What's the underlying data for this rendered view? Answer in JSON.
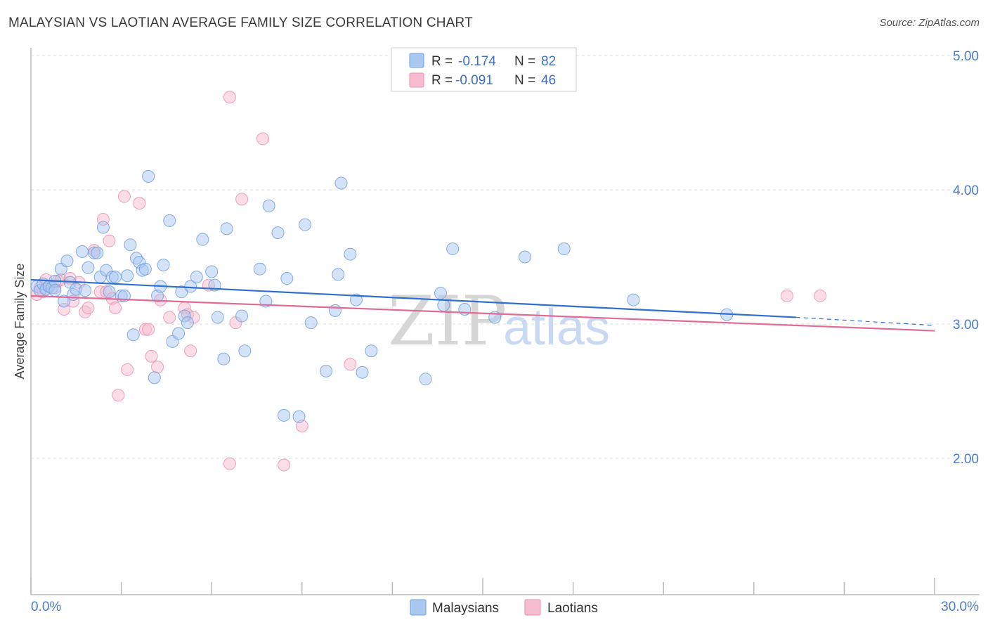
{
  "header": {
    "title": "MALAYSIAN VS LAOTIAN AVERAGE FAMILY SIZE CORRELATION CHART",
    "source": "Source: ZipAtlas.com"
  },
  "watermark": {
    "part1": "ZIP",
    "part2": "atlas"
  },
  "colors": {
    "malaysian_fill": "#aac8f0",
    "malaysian_stroke": "#6f9fe0",
    "malaysian_line": "#2f6fd0",
    "laotian_fill": "#f6bcd0",
    "laotian_stroke": "#ec8fb0",
    "laotian_line": "#e06b95",
    "tick_text": "#4a7cc9",
    "grid": "#dddddd"
  },
  "legend_top": {
    "rows": [
      {
        "r_label": "R =",
        "r_value": "-0.174",
        "n_label": "N =",
        "n_value": "82"
      },
      {
        "r_label": "R =",
        "r_value": "-0.091",
        "n_label": "N =",
        "n_value": "46"
      }
    ]
  },
  "legend_bottom": {
    "items": [
      "Malaysians",
      "Laotians"
    ]
  },
  "chart_data": {
    "type": "scatter",
    "title": "MALAYSIAN VS LAOTIAN AVERAGE FAMILY SIZE CORRELATION CHART",
    "xlabel": "",
    "ylabel": "Average Family Size",
    "xlim": [
      0,
      30
    ],
    "ylim": [
      1.0,
      5.0
    ],
    "x_tick_labels": [
      "0.0%",
      "30.0%"
    ],
    "y_ticks": [
      2.0,
      3.0,
      4.0,
      5.0
    ],
    "y_tick_labels": [
      "2.00",
      "3.00",
      "4.00",
      "5.00"
    ],
    "series": [
      {
        "name": "Malaysians",
        "R": -0.174,
        "N": 82,
        "trend": {
          "x0": 0.0,
          "y0": 3.33,
          "x1": 25.4,
          "y1": 3.05,
          "dash_to_x": 30.0,
          "dash_to_y": 2.99
        },
        "points": [
          [
            0.2,
            3.28
          ],
          [
            0.3,
            3.25
          ],
          [
            0.4,
            3.3
          ],
          [
            0.5,
            3.26
          ],
          [
            0.6,
            3.28
          ],
          [
            0.7,
            3.27
          ],
          [
            0.8,
            3.32
          ],
          [
            0.8,
            3.25
          ],
          [
            1.0,
            3.41
          ],
          [
            1.1,
            3.17
          ],
          [
            1.2,
            3.47
          ],
          [
            1.3,
            3.31
          ],
          [
            1.4,
            3.22
          ],
          [
            1.5,
            3.26
          ],
          [
            1.7,
            3.54
          ],
          [
            1.8,
            3.25
          ],
          [
            1.9,
            3.42
          ],
          [
            2.1,
            3.53
          ],
          [
            2.2,
            3.53
          ],
          [
            2.3,
            3.35
          ],
          [
            2.4,
            3.72
          ],
          [
            2.5,
            3.4
          ],
          [
            2.6,
            3.24
          ],
          [
            2.7,
            3.35
          ],
          [
            2.8,
            3.35
          ],
          [
            3.0,
            3.21
          ],
          [
            3.1,
            3.21
          ],
          [
            3.2,
            3.36
          ],
          [
            3.3,
            3.59
          ],
          [
            3.4,
            2.92
          ],
          [
            3.5,
            3.49
          ],
          [
            3.6,
            3.46
          ],
          [
            3.7,
            3.4
          ],
          [
            3.8,
            3.41
          ],
          [
            3.9,
            4.1
          ],
          [
            4.1,
            2.6
          ],
          [
            4.2,
            3.21
          ],
          [
            4.3,
            3.28
          ],
          [
            4.4,
            3.44
          ],
          [
            4.6,
            3.77
          ],
          [
            4.7,
            2.87
          ],
          [
            4.9,
            2.93
          ],
          [
            5.0,
            3.24
          ],
          [
            5.1,
            3.06
          ],
          [
            5.2,
            3.01
          ],
          [
            5.3,
            3.28
          ],
          [
            5.5,
            3.35
          ],
          [
            5.7,
            3.63
          ],
          [
            6.0,
            3.39
          ],
          [
            6.1,
            3.29
          ],
          [
            6.2,
            3.05
          ],
          [
            6.4,
            2.74
          ],
          [
            6.5,
            3.71
          ],
          [
            7.0,
            3.06
          ],
          [
            7.1,
            2.8
          ],
          [
            7.6,
            3.41
          ],
          [
            7.8,
            3.17
          ],
          [
            7.9,
            3.88
          ],
          [
            8.2,
            3.68
          ],
          [
            8.4,
            2.32
          ],
          [
            8.5,
            3.34
          ],
          [
            8.9,
            2.31
          ],
          [
            9.1,
            3.74
          ],
          [
            9.3,
            3.01
          ],
          [
            9.8,
            2.65
          ],
          [
            10.1,
            3.1
          ],
          [
            10.2,
            3.37
          ],
          [
            10.3,
            4.05
          ],
          [
            10.6,
            3.52
          ],
          [
            10.8,
            3.18
          ],
          [
            11.0,
            2.64
          ],
          [
            11.3,
            2.8
          ],
          [
            13.1,
            2.59
          ],
          [
            13.6,
            3.23
          ],
          [
            13.7,
            3.14
          ],
          [
            14.0,
            3.56
          ],
          [
            14.4,
            3.11
          ],
          [
            15.4,
            3.05
          ],
          [
            16.4,
            3.5
          ],
          [
            17.7,
            3.56
          ],
          [
            20.0,
            3.18
          ],
          [
            23.1,
            3.07
          ]
        ]
      },
      {
        "name": "Laotians",
        "R": -0.091,
        "N": 46,
        "trend": {
          "x0": 0.0,
          "y0": 3.21,
          "x1": 30.0,
          "y1": 2.95
        },
        "points": [
          [
            0.2,
            3.22
          ],
          [
            0.3,
            3.27
          ],
          [
            0.4,
            3.24
          ],
          [
            0.5,
            3.33
          ],
          [
            0.6,
            3.28
          ],
          [
            0.8,
            3.27
          ],
          [
            0.9,
            3.32
          ],
          [
            1.0,
            3.33
          ],
          [
            1.1,
            3.11
          ],
          [
            1.3,
            3.34
          ],
          [
            1.4,
            3.17
          ],
          [
            1.6,
            3.31
          ],
          [
            1.8,
            3.09
          ],
          [
            1.9,
            3.12
          ],
          [
            2.1,
            3.55
          ],
          [
            2.3,
            3.24
          ],
          [
            2.4,
            3.78
          ],
          [
            2.5,
            3.24
          ],
          [
            2.6,
            3.62
          ],
          [
            2.7,
            3.19
          ],
          [
            2.8,
            3.12
          ],
          [
            2.9,
            2.47
          ],
          [
            3.1,
            3.95
          ],
          [
            3.2,
            2.66
          ],
          [
            3.6,
            3.9
          ],
          [
            3.8,
            2.96
          ],
          [
            3.9,
            2.96
          ],
          [
            4.0,
            2.76
          ],
          [
            4.2,
            2.68
          ],
          [
            4.3,
            3.18
          ],
          [
            4.6,
            3.05
          ],
          [
            5.1,
            3.12
          ],
          [
            5.2,
            3.07
          ],
          [
            5.3,
            2.8
          ],
          [
            5.4,
            3.05
          ],
          [
            5.9,
            3.29
          ],
          [
            6.6,
            4.69
          ],
          [
            6.6,
            1.96
          ],
          [
            6.8,
            3.01
          ],
          [
            7.0,
            3.93
          ],
          [
            7.7,
            4.38
          ],
          [
            8.4,
            1.95
          ],
          [
            9.0,
            2.24
          ],
          [
            10.6,
            2.7
          ],
          [
            25.1,
            3.21
          ],
          [
            26.2,
            3.21
          ]
        ]
      }
    ]
  }
}
